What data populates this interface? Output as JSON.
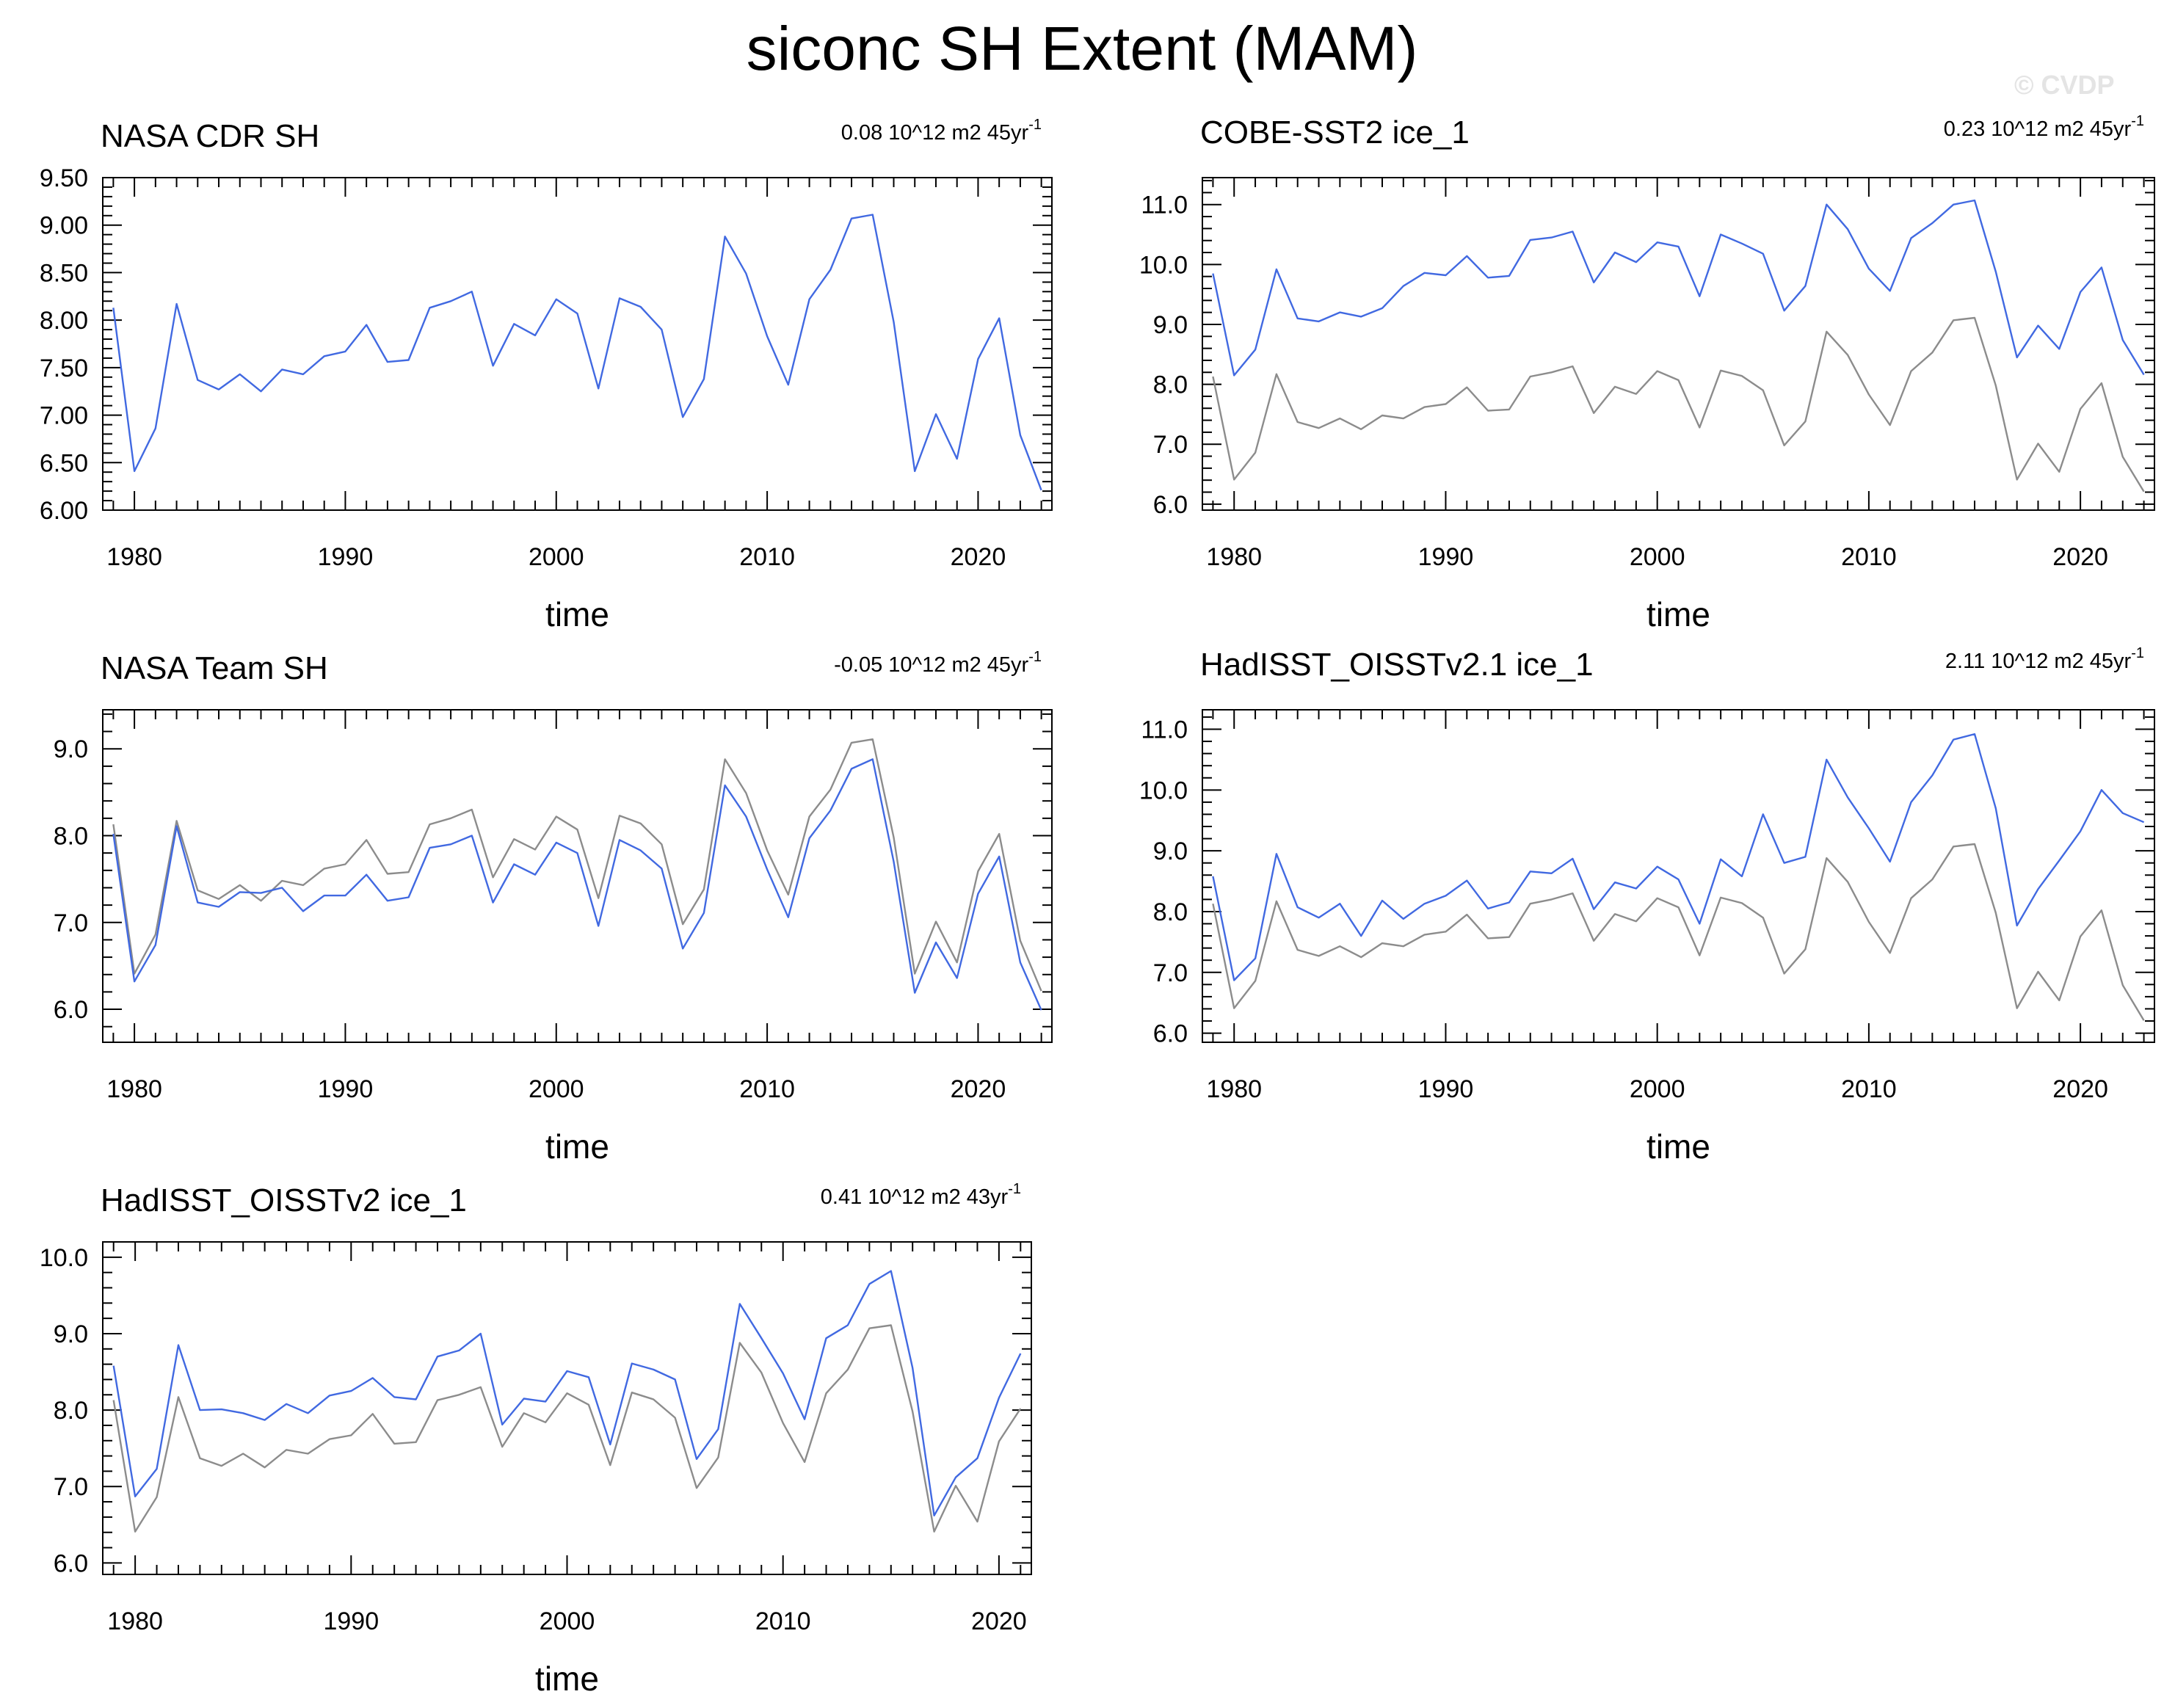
{
  "page": {
    "title": "siconc SH Extent (MAM)",
    "copyright": "© CVDP"
  },
  "colors": {
    "model_line": "#4169e1",
    "reference_line": "#8c8c8c",
    "axis": "#000000"
  },
  "chart_data": [
    {
      "type": "line",
      "title": "NASA CDR SH",
      "trend_label": "0.08 10^12 m2 45yr",
      "trend_superscript": "-1",
      "xlabel": "time",
      "ylabel": "",
      "xlim": [
        1978.5,
        2023.5
      ],
      "ylim": [
        6.0,
        9.5
      ],
      "xticks": [
        1980,
        1990,
        2000,
        2010,
        2020
      ],
      "yticks": [
        6.0,
        6.5,
        7.0,
        7.5,
        8.0,
        8.5,
        9.0,
        9.5
      ],
      "ytick_labels": [
        "6.00",
        "6.50",
        "7.00",
        "7.50",
        "8.00",
        "8.50",
        "9.00",
        "9.50"
      ],
      "x_start": 1979,
      "series": [
        {
          "role": "model",
          "values": [
            8.13,
            6.41,
            6.86,
            8.17,
            7.37,
            7.27,
            7.43,
            7.25,
            7.48,
            7.43,
            7.62,
            7.67,
            7.95,
            7.56,
            7.58,
            8.13,
            8.2,
            8.3,
            7.52,
            7.96,
            7.84,
            8.22,
            8.07,
            7.28,
            8.23,
            8.14,
            7.9,
            6.98,
            7.38,
            8.88,
            8.49,
            7.83,
            7.32,
            8.22,
            8.53,
            9.07,
            9.11,
            7.98,
            6.41,
            7.01,
            6.54,
            7.59,
            8.02,
            6.79,
            6.21
          ]
        }
      ]
    },
    {
      "type": "line",
      "title": "COBE-SST2 ice_1",
      "trend_label": "0.23 10^12 m2 45yr",
      "trend_superscript": "-1",
      "xlabel": "time",
      "ylabel": "",
      "xlim": [
        1978.5,
        2023.5
      ],
      "ylim": [
        5.9,
        11.45
      ],
      "xticks": [
        1980,
        1990,
        2000,
        2010,
        2020
      ],
      "yticks": [
        6.0,
        7.0,
        8.0,
        9.0,
        10.0,
        11.0
      ],
      "ytick_labels": [
        "6.0",
        "7.0",
        "8.0",
        "9.0",
        "10.0",
        "11.0"
      ],
      "x_start": 1979,
      "series": [
        {
          "role": "model",
          "values": [
            9.85,
            8.15,
            8.58,
            9.92,
            9.1,
            9.05,
            9.2,
            9.13,
            9.27,
            9.64,
            9.86,
            9.82,
            10.14,
            9.78,
            9.81,
            10.41,
            10.45,
            10.55,
            9.7,
            10.2,
            10.04,
            10.37,
            10.3,
            9.47,
            10.5,
            10.35,
            10.18,
            9.23,
            9.64,
            11.0,
            10.59,
            9.93,
            9.56,
            10.44,
            10.69,
            11.0,
            11.07,
            9.88,
            8.45,
            8.98,
            8.59,
            9.54,
            9.95,
            8.74,
            8.16
          ]
        },
        {
          "role": "reference",
          "values": [
            8.13,
            6.41,
            6.86,
            8.17,
            7.37,
            7.27,
            7.43,
            7.25,
            7.48,
            7.43,
            7.62,
            7.67,
            7.95,
            7.56,
            7.58,
            8.13,
            8.2,
            8.3,
            7.52,
            7.96,
            7.84,
            8.22,
            8.07,
            7.28,
            8.23,
            8.14,
            7.9,
            6.98,
            7.38,
            8.88,
            8.49,
            7.83,
            7.32,
            8.22,
            8.53,
            9.07,
            9.11,
            7.98,
            6.41,
            7.01,
            6.54,
            7.59,
            8.02,
            6.79,
            6.21
          ]
        }
      ]
    },
    {
      "type": "line",
      "title": "NASA Team SH",
      "trend_label": "-0.05 10^12 m2 45yr",
      "trend_superscript": "-1",
      "xlabel": "time",
      "ylabel": "",
      "xlim": [
        1978.5,
        2023.5
      ],
      "ylim": [
        5.62,
        9.45
      ],
      "xticks": [
        1980,
        1990,
        2000,
        2010,
        2020
      ],
      "yticks": [
        6.0,
        7.0,
        8.0,
        9.0
      ],
      "ytick_labels": [
        "6.0",
        "7.0",
        "8.0",
        "9.0"
      ],
      "x_start": 1979,
      "series": [
        {
          "role": "model",
          "values": [
            8.02,
            6.32,
            6.74,
            8.11,
            7.23,
            7.18,
            7.35,
            7.34,
            7.4,
            7.13,
            7.31,
            7.31,
            7.55,
            7.25,
            7.29,
            7.86,
            7.9,
            8.0,
            7.23,
            7.67,
            7.55,
            7.92,
            7.8,
            6.96,
            7.95,
            7.83,
            7.62,
            6.7,
            7.11,
            8.58,
            8.22,
            7.61,
            7.06,
            7.97,
            8.29,
            8.77,
            8.88,
            7.7,
            6.19,
            6.77,
            6.36,
            7.33,
            7.76,
            6.54,
            5.99
          ]
        },
        {
          "role": "reference",
          "values": [
            8.13,
            6.41,
            6.86,
            8.17,
            7.37,
            7.27,
            7.43,
            7.25,
            7.48,
            7.43,
            7.62,
            7.67,
            7.95,
            7.56,
            7.58,
            8.13,
            8.2,
            8.3,
            7.52,
            7.96,
            7.84,
            8.22,
            8.07,
            7.28,
            8.23,
            8.14,
            7.9,
            6.98,
            7.38,
            8.88,
            8.49,
            7.83,
            7.32,
            8.22,
            8.53,
            9.07,
            9.11,
            7.98,
            6.41,
            7.01,
            6.54,
            7.59,
            8.02,
            6.79,
            6.21
          ]
        }
      ]
    },
    {
      "type": "line",
      "title": "HadISST_OISSTv2.1 ice_1",
      "trend_label": "2.11 10^12 m2 45yr",
      "trend_superscript": "-1",
      "xlabel": "time",
      "ylabel": "",
      "xlim": [
        1978.5,
        2023.5
      ],
      "ylim": [
        5.85,
        11.32
      ],
      "xticks": [
        1980,
        1990,
        2000,
        2010,
        2020
      ],
      "yticks": [
        6.0,
        7.0,
        8.0,
        9.0,
        10.0,
        11.0
      ],
      "ytick_labels": [
        "6.0",
        "7.0",
        "8.0",
        "9.0",
        "10.0",
        "11.0"
      ],
      "x_start": 1979,
      "series": [
        {
          "role": "model",
          "values": [
            8.58,
            6.87,
            7.23,
            8.95,
            8.07,
            7.9,
            8.13,
            7.6,
            8.18,
            7.88,
            8.13,
            8.26,
            8.51,
            8.05,
            8.15,
            8.66,
            8.63,
            8.87,
            8.04,
            8.48,
            8.38,
            8.74,
            8.53,
            7.8,
            8.86,
            8.58,
            9.6,
            8.8,
            8.9,
            10.5,
            9.88,
            9.37,
            8.82,
            9.8,
            10.24,
            10.83,
            10.92,
            9.7,
            7.77,
            8.37,
            8.84,
            9.32,
            10.0,
            9.62,
            9.47
          ]
        },
        {
          "role": "reference",
          "values": [
            8.13,
            6.41,
            6.86,
            8.17,
            7.37,
            7.27,
            7.43,
            7.25,
            7.48,
            7.43,
            7.62,
            7.67,
            7.95,
            7.56,
            7.58,
            8.13,
            8.2,
            8.3,
            7.52,
            7.96,
            7.84,
            8.22,
            8.07,
            7.28,
            8.23,
            8.14,
            7.9,
            6.98,
            7.38,
            8.88,
            8.49,
            7.83,
            7.32,
            8.22,
            8.53,
            9.07,
            9.11,
            7.98,
            6.41,
            7.01,
            6.54,
            7.59,
            8.02,
            6.79,
            6.21
          ]
        }
      ]
    },
    {
      "type": "line",
      "title": "HadISST_OISSTv2 ice_1",
      "trend_label": "0.41 10^12 m2 43yr",
      "trend_superscript": "-1",
      "xlabel": "time",
      "ylabel": "",
      "xlim": [
        1978.5,
        2021.5
      ],
      "ylim": [
        5.85,
        10.2
      ],
      "xticks": [
        1980,
        1990,
        2000,
        2010,
        2020
      ],
      "yticks": [
        6.0,
        7.0,
        8.0,
        9.0,
        10.0
      ],
      "ytick_labels": [
        "6.0",
        "7.0",
        "8.0",
        "9.0",
        "10.0"
      ],
      "x_start": 1979,
      "series": [
        {
          "role": "model",
          "values": [
            8.58,
            6.87,
            7.23,
            8.85,
            8.0,
            8.01,
            7.96,
            7.87,
            8.08,
            7.96,
            8.19,
            8.25,
            8.42,
            8.17,
            8.14,
            8.7,
            8.78,
            9.0,
            7.81,
            8.15,
            8.11,
            8.51,
            8.43,
            7.55,
            8.61,
            8.53,
            8.4,
            7.36,
            7.75,
            9.39,
            8.94,
            8.48,
            7.88,
            8.94,
            9.11,
            9.65,
            9.82,
            8.55,
            6.62,
            7.12,
            7.37,
            8.16,
            8.74
          ]
        },
        {
          "role": "reference",
          "values": [
            8.13,
            6.41,
            6.86,
            8.17,
            7.37,
            7.27,
            7.43,
            7.25,
            7.48,
            7.43,
            7.62,
            7.67,
            7.95,
            7.56,
            7.58,
            8.13,
            8.2,
            8.3,
            7.52,
            7.96,
            7.84,
            8.22,
            8.07,
            7.28,
            8.23,
            8.14,
            7.9,
            6.98,
            7.38,
            8.88,
            8.49,
            7.83,
            7.32,
            8.22,
            8.53,
            9.07,
            9.11,
            7.98,
            6.41,
            7.01,
            6.54,
            7.59,
            8.02
          ]
        }
      ]
    }
  ]
}
